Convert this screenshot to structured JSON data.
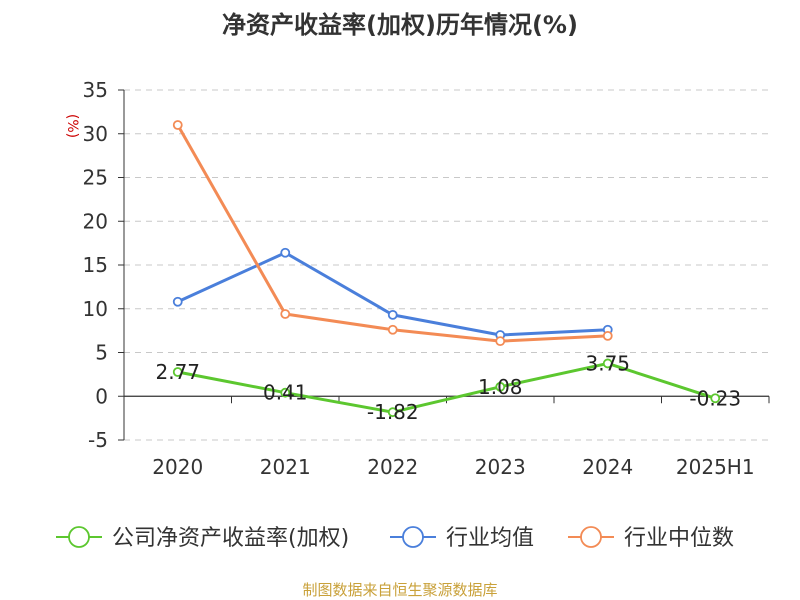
{
  "chart_data": {
    "type": "line",
    "title": "净资产收益率(加权)历年情况(%)",
    "ylabel": "(%)",
    "ylim": [
      -5,
      35
    ],
    "yticks": [
      -5,
      0,
      5,
      10,
      15,
      20,
      25,
      30,
      35
    ],
    "categories": [
      "2020",
      "2021",
      "2022",
      "2023",
      "2024",
      "2025H1"
    ],
    "grid": true,
    "legend": "bottom",
    "series": [
      {
        "name": "公司净资产收益率(加权)",
        "color": "#5cc72f",
        "values": [
          2.77,
          0.41,
          -1.82,
          1.08,
          3.75,
          -0.23
        ],
        "labels": [
          "2.77",
          "0.41",
          "-1.82",
          "1.08",
          "3.75",
          "-0.23"
        ]
      },
      {
        "name": "行业均值",
        "color": "#4a7fdb",
        "values": [
          10.8,
          16.4,
          9.3,
          7.0,
          7.6,
          null
        ]
      },
      {
        "name": "行业中位数",
        "color": "#f38b55",
        "values": [
          31.0,
          9.4,
          7.6,
          6.3,
          6.9,
          null
        ]
      }
    ]
  },
  "source": "制图数据来自恒生聚源数据库"
}
